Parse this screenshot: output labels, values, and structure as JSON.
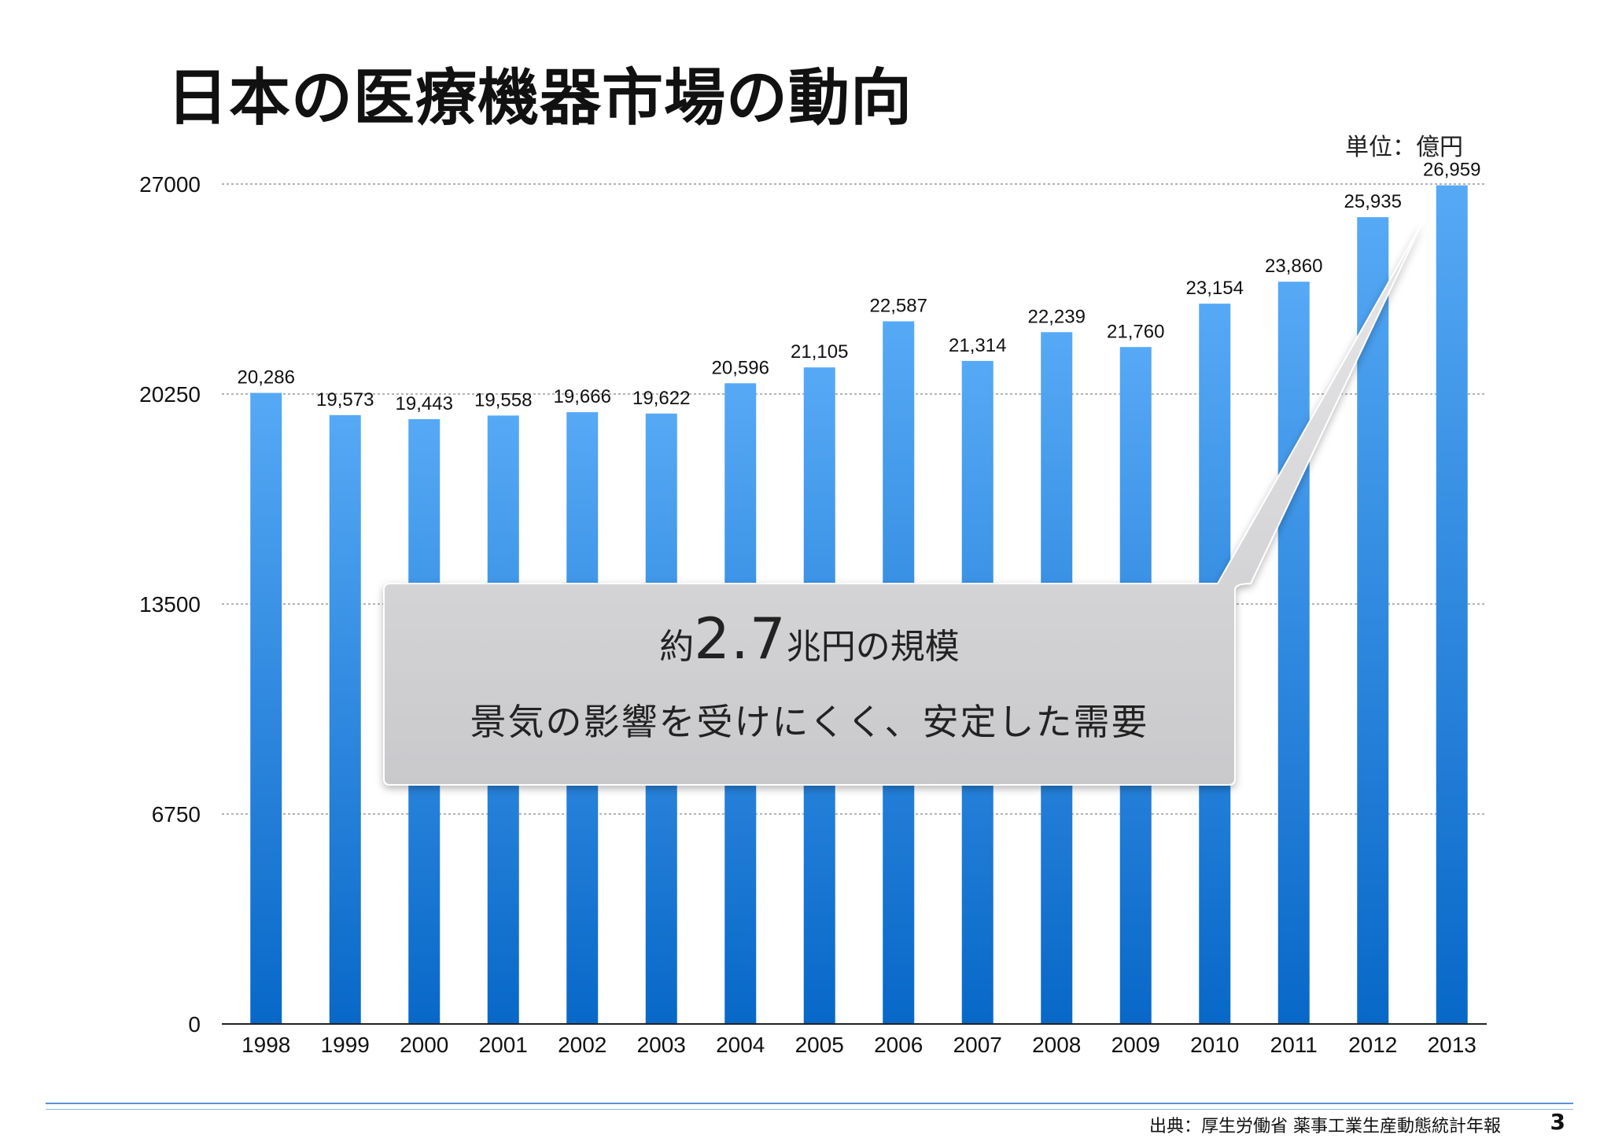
{
  "slide": {
    "title": "日本の医療機器市場の動向",
    "unit": "単位：億円",
    "source": "出典：厚生労働省 薬事工業生産動態統計年報",
    "page_number": "3"
  },
  "callout": {
    "prefix": "約",
    "big": "2.7",
    "suffix": "兆円の規模",
    "line2": "景気の影響を受けにくく、安定した需要"
  },
  "colors": {
    "bar_top": "#56a9f5",
    "bar_bottom": "#0868c8",
    "grid": "#9a9a9a",
    "callout_fill_top": "#e7e7e9",
    "callout_fill_bottom": "#c9c9cc"
  },
  "chart_data": {
    "type": "bar",
    "categories": [
      "1998",
      "1999",
      "2000",
      "2001",
      "2002",
      "2003",
      "2004",
      "2005",
      "2006",
      "2007",
      "2008",
      "2009",
      "2010",
      "2011",
      "2012",
      "2013"
    ],
    "values": [
      20286,
      19573,
      19443,
      19558,
      19666,
      19622,
      20596,
      21105,
      22587,
      21314,
      22239,
      21760,
      23154,
      23860,
      25935,
      26959
    ],
    "value_labels": [
      "20,286",
      "19,573",
      "19,443",
      "19,558",
      "19,666",
      "19,622",
      "20,596",
      "21,105",
      "22,587",
      "21,314",
      "22,239",
      "21,760",
      "23,154",
      "23,860",
      "25,935",
      "26,959"
    ],
    "yticks": [
      "0",
      "6750",
      "13500",
      "20250",
      "27000"
    ],
    "ylim": [
      0,
      27000
    ],
    "grid": true,
    "legend": "none"
  }
}
